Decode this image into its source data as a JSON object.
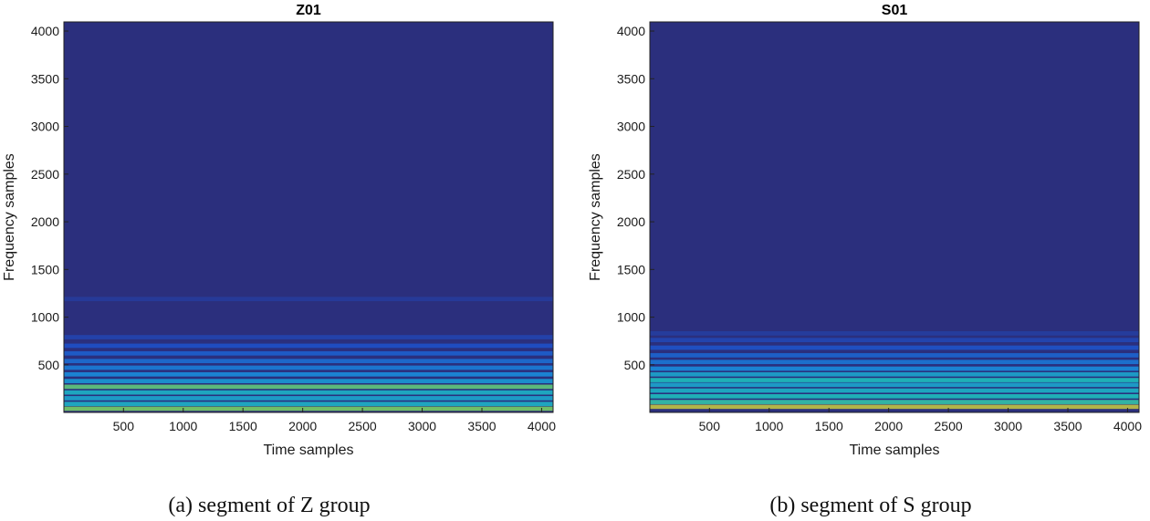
{
  "chart_data": [
    {
      "type": "heatmap",
      "title": "Z01",
      "xlabel": "Time samples",
      "ylabel": "Frequency samples",
      "xlim": [
        1,
        4096
      ],
      "ylim": [
        1,
        4096
      ],
      "xticks": [
        500,
        1000,
        1500,
        2000,
        2500,
        3000,
        3500,
        4000
      ],
      "yticks": [
        500,
        1000,
        1500,
        2000,
        2500,
        3000,
        3500,
        4000
      ],
      "caption": "(a) segment of Z group",
      "colormap": "parula",
      "background_color": "#2b2f7d",
      "energy_bands": [
        {
          "freq": 40,
          "intensity": 0.75
        },
        {
          "freq": 90,
          "intensity": 0.5
        },
        {
          "freq": 150,
          "intensity": 0.45
        },
        {
          "freq": 210,
          "intensity": 0.5
        },
        {
          "freq": 270,
          "intensity": 0.7
        },
        {
          "freq": 330,
          "intensity": 0.4
        },
        {
          "freq": 400,
          "intensity": 0.35
        },
        {
          "freq": 470,
          "intensity": 0.3
        },
        {
          "freq": 540,
          "intensity": 0.25
        },
        {
          "freq": 620,
          "intensity": 0.2
        },
        {
          "freq": 700,
          "intensity": 0.15
        },
        {
          "freq": 790,
          "intensity": 0.1
        },
        {
          "freq": 1190,
          "intensity": 0.06
        }
      ]
    },
    {
      "type": "heatmap",
      "title": "S01",
      "xlabel": "Time samples",
      "ylabel": "Frequency samples",
      "xlim": [
        1,
        4096
      ],
      "ylim": [
        1,
        4096
      ],
      "xticks": [
        500,
        1000,
        1500,
        2000,
        2500,
        3000,
        3500,
        4000
      ],
      "yticks": [
        500,
        1000,
        1500,
        2000,
        2500,
        3000,
        3500,
        4000
      ],
      "caption": "(b) segment of S group",
      "colormap": "parula",
      "background_color": "#2b2f7d",
      "energy_bands": [
        {
          "freq": 60,
          "intensity": 0.85
        },
        {
          "freq": 110,
          "intensity": 0.6
        },
        {
          "freq": 170,
          "intensity": 0.55
        },
        {
          "freq": 230,
          "intensity": 0.5
        },
        {
          "freq": 290,
          "intensity": 0.45
        },
        {
          "freq": 340,
          "intensity": 0.55
        },
        {
          "freq": 400,
          "intensity": 0.45
        },
        {
          "freq": 460,
          "intensity": 0.35
        },
        {
          "freq": 530,
          "intensity": 0.28
        },
        {
          "freq": 600,
          "intensity": 0.22
        },
        {
          "freq": 680,
          "intensity": 0.16
        },
        {
          "freq": 760,
          "intensity": 0.11
        },
        {
          "freq": 830,
          "intensity": 0.07
        }
      ]
    }
  ]
}
